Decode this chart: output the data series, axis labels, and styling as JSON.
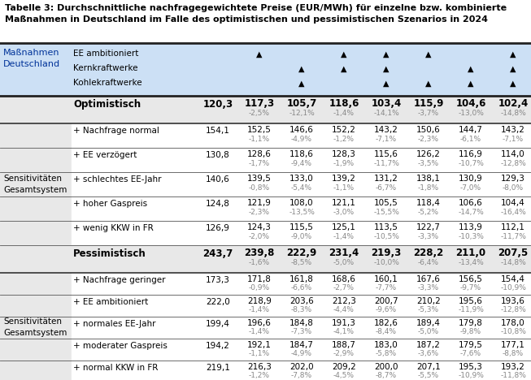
{
  "title": "Tabelle 3: Durchschnittliche nachfragegewichtete Preise (EUR/MWh) für einzelne bzw. kombinierte\nMaßnahmen in Deutschland im Falle des optimistischen und pessimistischen Szenarios in 2024",
  "measures_rows": [
    {
      "label": "EE ambitioniert",
      "triangles": [
        1,
        0,
        1,
        1,
        1,
        0,
        1
      ]
    },
    {
      "label": "Kernkraftwerke",
      "triangles": [
        0,
        1,
        1,
        1,
        0,
        1,
        1
      ]
    },
    {
      "label": "Kohlekraftwerke",
      "triangles": [
        0,
        1,
        0,
        1,
        1,
        1,
        1
      ]
    }
  ],
  "opt_row": {
    "label": "Optimistisch",
    "val0": "120,3",
    "vals": [
      "117,3",
      "105,7",
      "118,6",
      "103,4",
      "115,9",
      "104,6",
      "102,4"
    ],
    "pcts": [
      "-2,5%",
      "-12,1%",
      "-1,4%",
      "-14,1%",
      "-3,7%",
      "-13,0%",
      "-14,8%"
    ]
  },
  "opt_sensitivities": [
    {
      "label": "+ Nachfrage normal",
      "val0": "154,1",
      "vals": [
        "152,5",
        "146,6",
        "152,2",
        "143,2",
        "150,6",
        "144,7",
        "143,2"
      ],
      "pcts": [
        "-1,1%",
        "-4,9%",
        "-1,2%",
        "-7,1%",
        "-2,3%",
        "-6,1%",
        "-7,1%"
      ]
    },
    {
      "label": "+ EE verzögert",
      "val0": "130,8",
      "vals": [
        "128,6",
        "118,6",
        "128,3",
        "115,6",
        "126,2",
        "116,9",
        "114,0"
      ],
      "pcts": [
        "-1,7%",
        "-9,4%",
        "-1,9%",
        "-11,7%",
        "-3,5%",
        "-10,7%",
        "-12,8%"
      ]
    },
    {
      "label": "+ schlechtes EE-Jahr",
      "val0": "140,6",
      "vals": [
        "139,5",
        "133,0",
        "139,2",
        "131,2",
        "138,1",
        "130,9",
        "129,3"
      ],
      "pcts": [
        "-0,8%",
        "-5,4%",
        "-1,1%",
        "-6,7%",
        "-1,8%",
        "-7,0%",
        "-8,0%"
      ]
    },
    {
      "label": "+ hoher Gaspreis",
      "val0": "124,8",
      "vals": [
        "121,9",
        "108,0",
        "121,1",
        "105,5",
        "118,4",
        "106,6",
        "104,4"
      ],
      "pcts": [
        "-2,3%",
        "-13,5%",
        "-3,0%",
        "-15,5%",
        "-5,2%",
        "-14,7%",
        "-16,4%"
      ]
    },
    {
      "label": "+ wenig KKW in FR",
      "val0": "126,9",
      "vals": [
        "124,3",
        "115,5",
        "125,1",
        "113,5",
        "122,7",
        "113,9",
        "112,1"
      ],
      "pcts": [
        "-2,0%",
        "-9,0%",
        "-1,4%",
        "-10,5%",
        "-3,3%",
        "-10,3%",
        "-11,7%"
      ]
    }
  ],
  "pes_row": {
    "label": "Pessimistisch",
    "val0": "243,7",
    "vals": [
      "239,8",
      "222,9",
      "231,4",
      "219,3",
      "228,2",
      "211,0",
      "207,5"
    ],
    "pcts": [
      "-1,6%",
      "-8,5%",
      "-5,0%",
      "-10,0%",
      "-6,4%",
      "-13,4%",
      "-14,8%"
    ]
  },
  "pes_sensitivities": [
    {
      "label": "+ Nachfrage geringer",
      "val0": "173,3",
      "vals": [
        "171,8",
        "161,8",
        "168,6",
        "160,1",
        "167,6",
        "156,5",
        "154,4"
      ],
      "pcts": [
        "-0,9%",
        "-6,6%",
        "-2,7%",
        "-7,7%",
        "-3,3%",
        "-9,7%",
        "-10,9%"
      ]
    },
    {
      "label": "+ EE ambitioniert",
      "val0": "222,0",
      "vals": [
        "218,9",
        "203,6",
        "212,3",
        "200,7",
        "210,2",
        "195,6",
        "193,6"
      ],
      "pcts": [
        "-1,4%",
        "-8,3%",
        "-4,4%",
        "-9,6%",
        "-5,3%",
        "-11,9%",
        "-12,8%"
      ]
    },
    {
      "label": "+ normales EE-Jahr",
      "val0": "199,4",
      "vals": [
        "196,6",
        "184,8",
        "191,3",
        "182,6",
        "189,4",
        "179,8",
        "178,0"
      ],
      "pcts": [
        "-1,4%",
        "-7,3%",
        "-4,1%",
        "-8,4%",
        "-5,0%",
        "-9,8%",
        "-10,8%"
      ]
    },
    {
      "label": "+ moderater Gaspreis",
      "val0": "194,2",
      "vals": [
        "192,1",
        "184,7",
        "188,7",
        "183,0",
        "187,2",
        "179,5",
        "177,1"
      ],
      "pcts": [
        "-1,1%",
        "-4,9%",
        "-2,9%",
        "-5,8%",
        "-3,6%",
        "-7,6%",
        "-8,8%"
      ]
    },
    {
      "label": "+ normal KKW in FR",
      "val0": "219,1",
      "vals": [
        "216,3",
        "202,0",
        "209,2",
        "200,0",
        "207,1",
        "195,3",
        "193,2"
      ],
      "pcts": [
        "-1,2%",
        "-7,8%",
        "-4,5%",
        "-8,7%",
        "-5,5%",
        "-10,9%",
        "-11,8%"
      ]
    }
  ],
  "bg_blue": "#cce0f5",
  "bg_light": "#e8e8e8",
  "bg_white": "#ffffff",
  "color_pct": "#888888",
  "color_black": "#000000",
  "color_darkblue": "#003366"
}
